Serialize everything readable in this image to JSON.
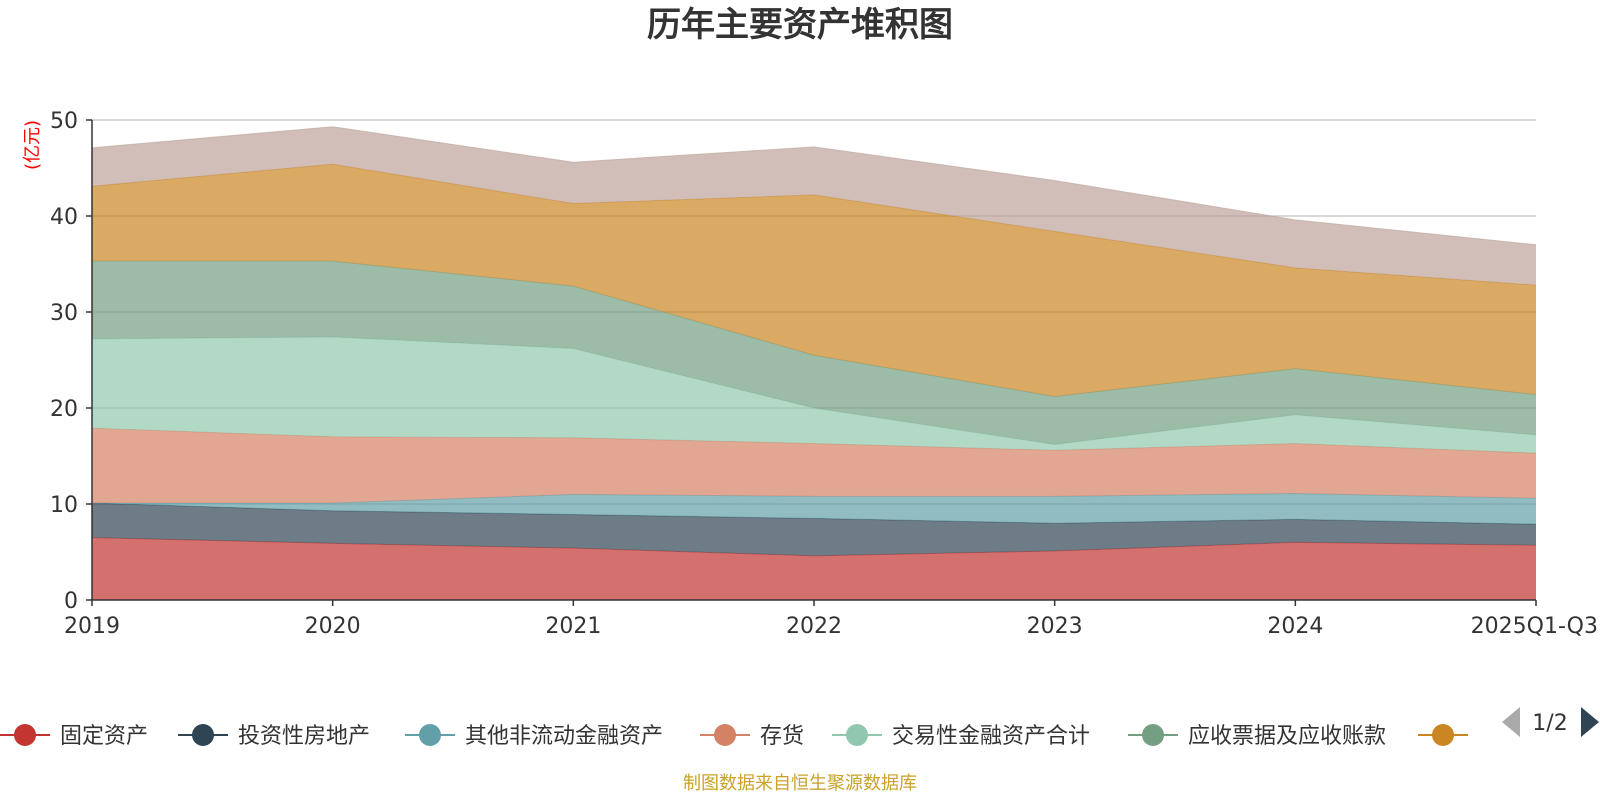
{
  "chart_data": {
    "type": "area",
    "stacked": true,
    "title": "历年主要资产堆积图",
    "unit_label": "(亿元)",
    "categories": [
      "2019",
      "2020",
      "2021",
      "2022",
      "2023",
      "2024",
      "2025Q1-Q3"
    ],
    "ylim": [
      0,
      50
    ],
    "yticks": [
      "0",
      "10",
      "20",
      "30",
      "40",
      "50"
    ],
    "grid": true,
    "series": [
      {
        "name": "固定资产",
        "color": "#c23531",
        "values": [
          6.5,
          5.9,
          5.4,
          4.6,
          5.1,
          6.0,
          5.7
        ]
      },
      {
        "name": "投资性房地产",
        "color": "#2f4554",
        "values": [
          3.6,
          3.4,
          3.5,
          3.9,
          2.9,
          2.4,
          2.2
        ]
      },
      {
        "name": "其他非流动金融资产",
        "color": "#61a0a8",
        "values": [
          0.0,
          0.8,
          2.1,
          2.3,
          2.8,
          2.7,
          2.7
        ]
      },
      {
        "name": "存货",
        "color": "#d48265",
        "values": [
          7.8,
          6.9,
          5.9,
          5.5,
          4.8,
          5.2,
          4.7
        ]
      },
      {
        "name": "交易性金融资产合计",
        "color": "#91c7ae",
        "values": [
          9.3,
          10.4,
          9.3,
          3.7,
          0.6,
          3.0,
          1.9
        ]
      },
      {
        "name": "应收票据及应收账款",
        "color": "#749f83",
        "values": [
          8.1,
          7.9,
          6.5,
          5.5,
          5.0,
          4.8,
          4.2
        ]
      },
      {
        "name": "",
        "color": "#ca8622",
        "values": [
          7.8,
          10.1,
          8.6,
          16.7,
          17.2,
          10.5,
          11.4
        ]
      },
      {
        "name": "",
        "color": "#bda29a",
        "values": [
          4.0,
          3.9,
          4.3,
          5.0,
          5.3,
          5.0,
          4.2
        ]
      }
    ]
  },
  "legend": {
    "page_indicator": "1/2"
  },
  "source_note": "制图数据来自恒生聚源数据库",
  "colors": {
    "unit_label": "#ff0000",
    "source_note": "#c9a227",
    "grid": "#cccccc",
    "axis": "#333333",
    "pager_inactive": "#aaaaaa",
    "pager_active": "#2f4554"
  }
}
